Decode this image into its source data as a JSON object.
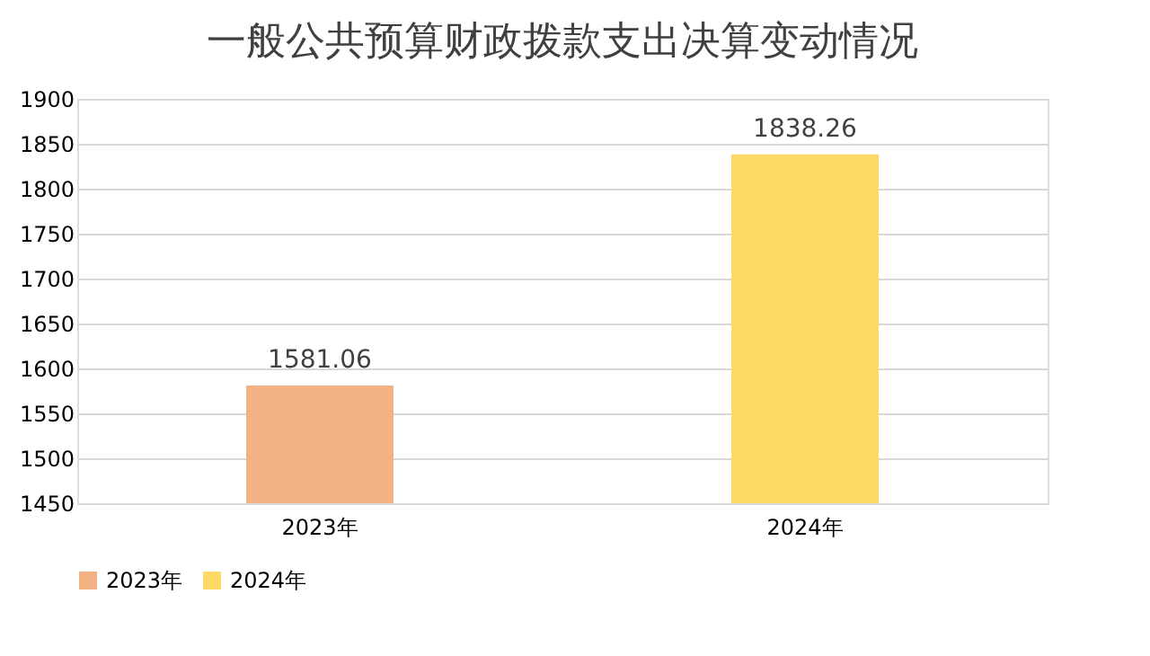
{
  "chart_data": {
    "type": "bar",
    "title": "一般公共预算财政拨款支出决算变动情况",
    "categories": [
      "2023年",
      "2024年"
    ],
    "series": [
      {
        "name": "2023年",
        "color": "#f4b183",
        "values": [
          1581.06,
          null
        ]
      },
      {
        "name": "2024年",
        "color": "#ffd966",
        "values": [
          null,
          1838.26
        ]
      }
    ],
    "ylim": [
      1450,
      1900
    ],
    "yticks": [
      1450,
      1500,
      1550,
      1600,
      1650,
      1700,
      1750,
      1800,
      1850,
      1900
    ],
    "grid": "y",
    "legend": "bottom",
    "data_labels": true
  }
}
